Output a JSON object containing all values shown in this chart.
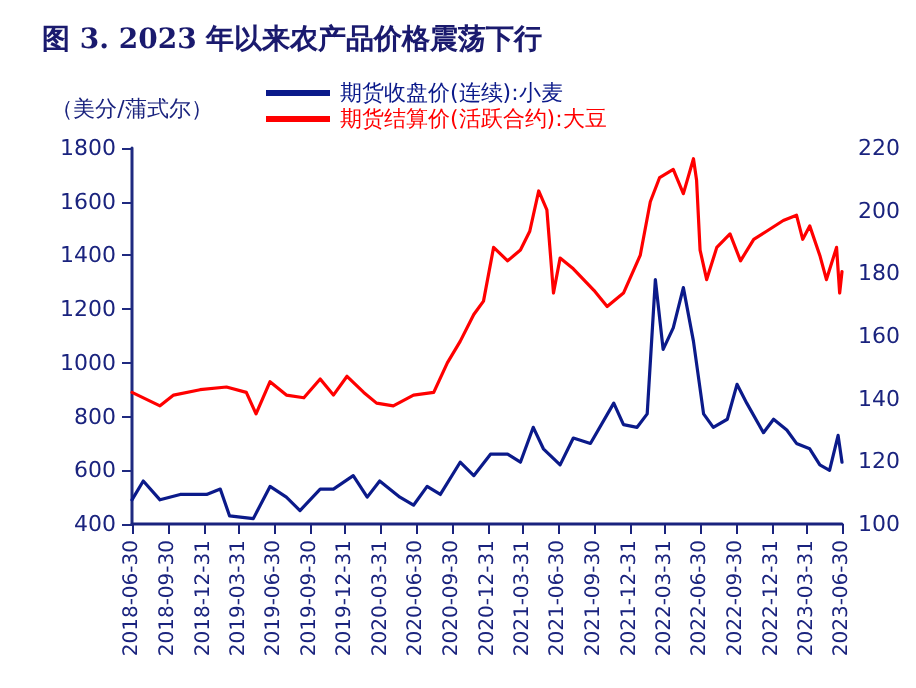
{
  "chart_data": {
    "type": "line",
    "title": "图 3. 2023 年以来农产品价格震荡下行",
    "ylabel": "（美分/蒲式尔）",
    "ylim": [
      400,
      1800
    ],
    "yticks": [
      400,
      600,
      800,
      1000,
      1200,
      1400,
      1600,
      1800
    ],
    "y2lim": [
      100,
      220
    ],
    "y2ticks": [
      100,
      120,
      140,
      160,
      180,
      200,
      220
    ],
    "xlim": [
      "2018-06-30",
      "2023-06-30"
    ],
    "xticks": [
      "2018-06-30",
      "2018-09-30",
      "2018-12-31",
      "2019-03-31",
      "2019-06-30",
      "2019-09-30",
      "2019-12-31",
      "2020-03-31",
      "2020-06-30",
      "2020-09-30",
      "2020-12-31",
      "2021-03-31",
      "2021-06-30",
      "2021-09-30",
      "2021-12-31",
      "2022-03-31",
      "2022-06-30",
      "2022-09-30",
      "2022-12-31",
      "2023-03-31",
      "2023-06-30"
    ],
    "legend": "top",
    "grid": false,
    "marker": "none",
    "line_style": "solid",
    "series": [
      {
        "name": "期货收盘价(连续):小麦",
        "color": "#0b1a8a",
        "x": [
          "2018-06-30",
          "2018-07-29",
          "2018-09-10",
          "2018-11-01",
          "2019-01-08",
          "2019-02-12",
          "2019-03-08",
          "2019-05-08",
          "2019-06-20",
          "2019-08-01",
          "2019-09-05",
          "2019-10-27",
          "2019-11-30",
          "2020-01-20",
          "2020-02-25",
          "2020-03-28",
          "2020-05-19",
          "2020-06-23",
          "2020-07-28",
          "2020-08-31",
          "2020-10-21",
          "2020-11-25",
          "2021-01-07",
          "2021-02-20",
          "2021-03-25",
          "2021-04-27",
          "2021-05-23",
          "2021-07-05",
          "2021-08-08",
          "2021-09-21",
          "2021-11-20",
          "2021-12-15",
          "2022-01-19",
          "2022-02-14",
          "2022-03-07",
          "2022-03-27",
          "2022-04-22",
          "2022-05-18",
          "2022-06-13",
          "2022-07-09",
          "2022-08-03",
          "2022-09-08",
          "2022-10-03",
          "2022-10-28",
          "2022-12-10",
          "2023-01-05",
          "2023-02-08",
          "2023-03-05",
          "2023-04-08",
          "2023-05-04",
          "2023-05-29",
          "2023-06-20",
          "2023-06-30"
        ],
        "values": [
          490,
          560,
          490,
          510,
          510,
          530,
          430,
          420,
          540,
          500,
          450,
          530,
          530,
          580,
          500,
          560,
          500,
          470,
          540,
          510,
          630,
          580,
          660,
          660,
          630,
          760,
          680,
          620,
          720,
          700,
          850,
          770,
          760,
          810,
          1310,
          1050,
          1130,
          1280,
          1080,
          810,
          760,
          790,
          920,
          850,
          740,
          790,
          750,
          700,
          680,
          620,
          600,
          730,
          630
        ]
      },
      {
        "name": "期货结算价(活跃合约):大豆",
        "color": "#ff0000",
        "x": [
          "2018-06-30",
          "2018-09-10",
          "2018-10-15",
          "2018-12-22",
          "2019-02-28",
          "2019-04-20",
          "2019-05-15",
          "2019-06-20",
          "2019-08-01",
          "2019-09-15",
          "2019-10-27",
          "2019-11-30",
          "2020-01-04",
          "2020-02-16",
          "2020-03-20",
          "2020-05-02",
          "2020-06-23",
          "2020-08-14",
          "2020-09-18",
          "2020-10-21",
          "2020-11-25",
          "2020-12-20",
          "2021-01-15",
          "2021-02-20",
          "2021-03-25",
          "2021-04-18",
          "2021-05-11",
          "2021-06-01",
          "2021-06-18",
          "2021-07-05",
          "2021-08-08",
          "2021-09-30",
          "2021-11-03",
          "2021-12-15",
          "2022-01-27",
          "2022-02-22",
          "2022-03-18",
          "2022-04-22",
          "2022-05-18",
          "2022-06-13",
          "2022-06-21",
          "2022-06-30",
          "2022-07-17",
          "2022-08-12",
          "2022-09-15",
          "2022-10-12",
          "2022-11-15",
          "2022-12-18",
          "2023-01-30",
          "2023-03-05",
          "2023-03-21",
          "2023-04-08",
          "2023-05-04",
          "2023-05-21",
          "2023-06-16",
          "2023-06-24",
          "2023-06-30"
        ],
        "values": [
          890,
          840,
          880,
          900,
          910,
          890,
          810,
          930,
          880,
          870,
          940,
          880,
          950,
          890,
          850,
          840,
          880,
          890,
          1000,
          1080,
          1180,
          1230,
          1430,
          1380,
          1420,
          1490,
          1640,
          1570,
          1260,
          1390,
          1350,
          1270,
          1210,
          1260,
          1400,
          1600,
          1690,
          1720,
          1630,
          1760,
          1680,
          1420,
          1310,
          1430,
          1480,
          1380,
          1460,
          1490,
          1530,
          1550,
          1460,
          1510,
          1400,
          1310,
          1430,
          1260,
          1340
        ]
      }
    ]
  }
}
